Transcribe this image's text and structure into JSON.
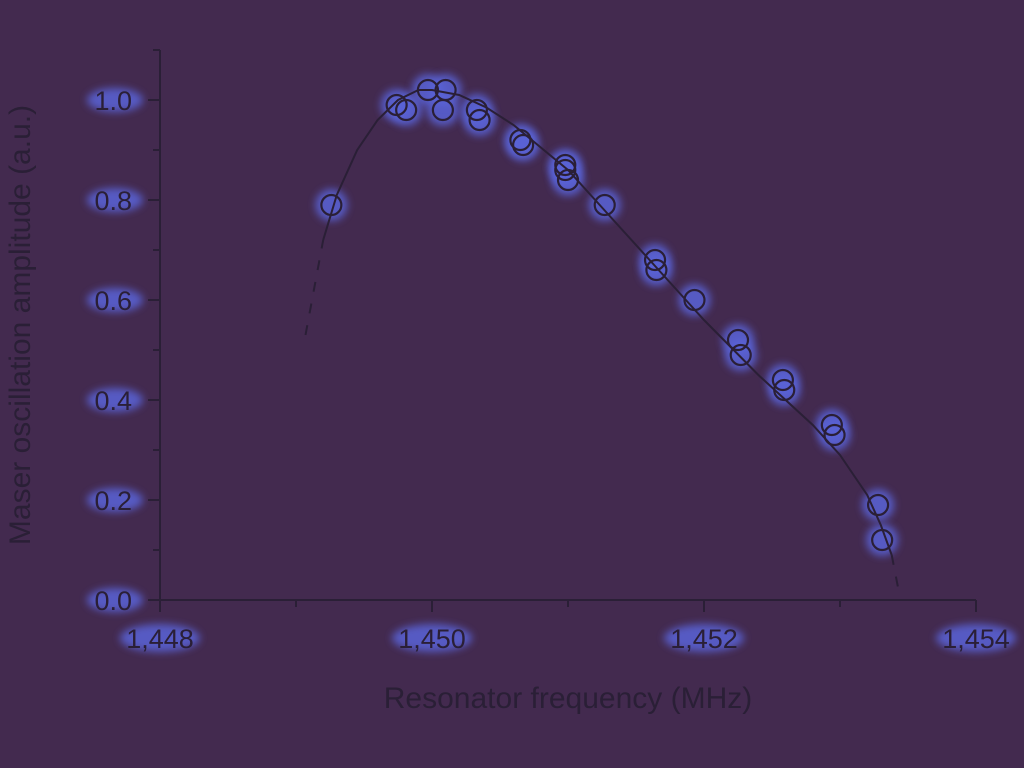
{
  "chart_data": {
    "type": "scatter",
    "title": "",
    "xlabel": "Resonator frequency (MHz)",
    "ylabel": "Maser oscillation amplitude (a.u.)",
    "xlim": [
      1448,
      1454
    ],
    "ylim": [
      0.0,
      1.1
    ],
    "x_ticks": [
      1448,
      1450,
      1452,
      1454
    ],
    "x_tick_labels": [
      "1,448",
      "1,450",
      "1,452",
      "1,454"
    ],
    "y_ticks": [
      0.0,
      0.2,
      0.4,
      0.6,
      0.8,
      1.0
    ],
    "y_tick_labels": [
      "0.0",
      "0.2",
      "0.4",
      "0.6",
      "0.8",
      "1.0"
    ],
    "grid": false,
    "series": [
      {
        "marker": "open-circle",
        "x": [
          1449.26,
          1449.74,
          1449.81,
          1449.97,
          1450.08,
          1450.1,
          1450.33,
          1450.35,
          1450.65,
          1450.67,
          1450.98,
          1450.98,
          1451.0,
          1451.27,
          1451.64,
          1451.65,
          1451.93,
          1452.25,
          1452.27,
          1452.58,
          1452.59,
          1452.94,
          1452.96,
          1453.28,
          1453.31
        ],
        "y": [
          0.79,
          0.99,
          0.98,
          1.02,
          0.98,
          1.02,
          0.98,
          0.96,
          0.92,
          0.91,
          0.87,
          0.86,
          0.84,
          0.79,
          0.68,
          0.66,
          0.6,
          0.52,
          0.49,
          0.44,
          0.42,
          0.35,
          0.33,
          0.19,
          0.12
        ]
      },
      {
        "type": "line",
        "style": "solid",
        "x": [
          1449.2,
          1449.3,
          1449.45,
          1449.6,
          1449.75,
          1449.9,
          1450.0,
          1450.2,
          1450.4,
          1450.6,
          1450.8,
          1451.0,
          1451.2,
          1451.4,
          1451.6,
          1451.8,
          1452.0,
          1452.2,
          1452.4,
          1452.6,
          1452.8,
          1453.0,
          1453.1,
          1453.2,
          1453.3,
          1453.38
        ],
        "y": [
          0.72,
          0.81,
          0.9,
          0.96,
          1.0,
          1.02,
          1.02,
          1.01,
          0.985,
          0.95,
          0.905,
          0.86,
          0.8,
          0.74,
          0.68,
          0.62,
          0.56,
          0.505,
          0.45,
          0.4,
          0.35,
          0.29,
          0.25,
          0.21,
          0.15,
          0.09
        ]
      },
      {
        "type": "line",
        "style": "dashed",
        "x": [
          1449.07,
          1449.2
        ],
        "y": [
          0.53,
          0.72
        ]
      },
      {
        "type": "line",
        "style": "dashed",
        "x": [
          1453.38,
          1453.43
        ],
        "y": [
          0.09,
          0.02
        ]
      }
    ]
  }
}
